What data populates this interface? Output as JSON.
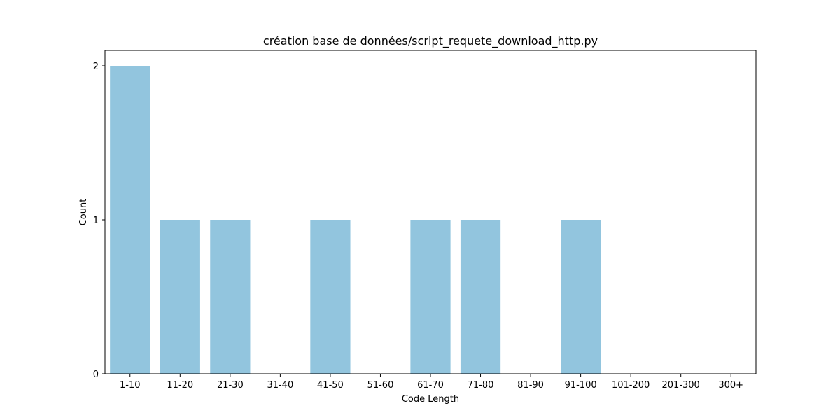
{
  "chart_data": {
    "type": "bar",
    "title": "création base de données/script_requete_download_http.py",
    "xlabel": "Code Length",
    "ylabel": "Count",
    "categories": [
      "1-10",
      "11-20",
      "21-30",
      "31-40",
      "41-50",
      "51-60",
      "61-70",
      "71-80",
      "81-90",
      "91-100",
      "101-200",
      "201-300",
      "300+"
    ],
    "values": [
      2,
      1,
      1,
      0,
      1,
      0,
      1,
      1,
      0,
      1,
      0,
      0,
      0
    ],
    "yticks": [
      0,
      1,
      2
    ],
    "ylim": [
      0,
      2.1
    ],
    "grid": false,
    "legend": false,
    "bar_color": "#92c5de"
  }
}
